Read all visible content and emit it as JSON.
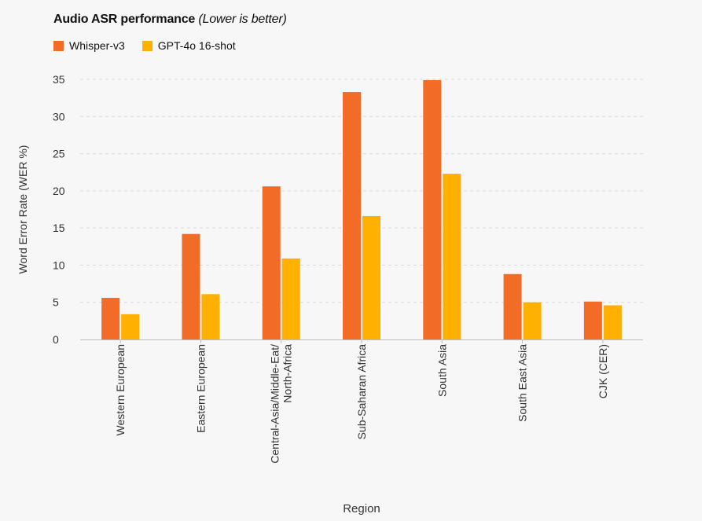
{
  "chart_data": {
    "type": "bar",
    "title": "Audio ASR performance",
    "subtitle": "(Lower is better)",
    "xlabel": "Region",
    "ylabel": "Word Error Rate (WER %)",
    "ylim": [
      0,
      35
    ],
    "yticks": [
      0,
      5,
      10,
      15,
      20,
      25,
      30,
      35
    ],
    "grid": true,
    "legend_position": "top-left",
    "categories": [
      [
        "Western European"
      ],
      [
        "Eastern European"
      ],
      [
        "Central-Asia/Middle-Eat/",
        "North-Africa"
      ],
      [
        "Sub-Saharan Africa"
      ],
      [
        "South Asia"
      ],
      [
        "South East Asia"
      ],
      [
        "CJK (CER)"
      ]
    ],
    "series": [
      {
        "name": "Whisper-v3",
        "color": "#f26c27",
        "values": [
          5.6,
          14.2,
          20.6,
          33.3,
          34.9,
          8.8,
          5.1
        ]
      },
      {
        "name": "GPT-4o 16-shot",
        "color": "#ffb000",
        "values": [
          3.4,
          6.1,
          10.9,
          16.6,
          22.3,
          5.0,
          4.6
        ]
      }
    ]
  }
}
